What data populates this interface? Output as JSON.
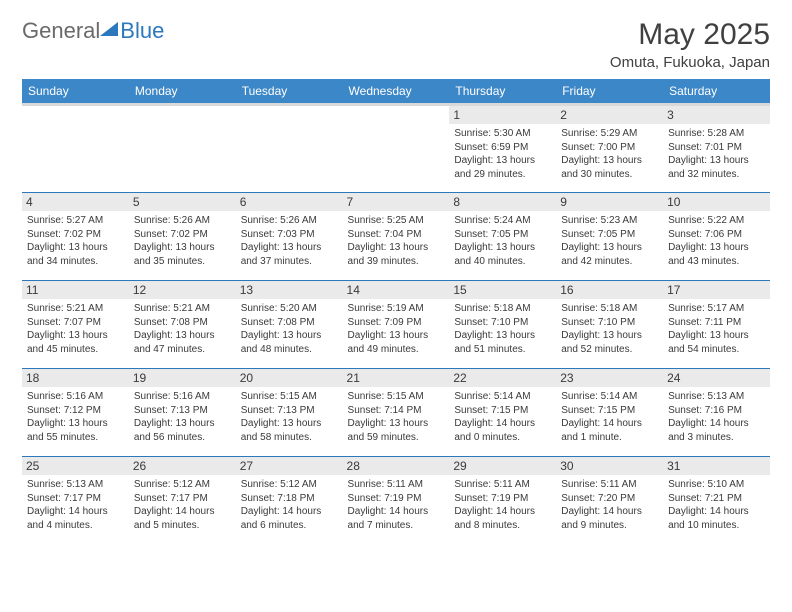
{
  "brand": {
    "part1": "General",
    "part2": "Blue"
  },
  "title": "May 2025",
  "location": "Omuta, Fukuoka, Japan",
  "colors": {
    "header_bg": "#3c87c7",
    "header_text": "#ffffff",
    "border": "#2b78bd",
    "daybar": "#eaeaea",
    "text": "#3a3a3a",
    "logo_gray": "#6a6a6a",
    "logo_blue": "#2b78bd"
  },
  "typography": {
    "title_fontsize": 30,
    "location_fontsize": 15,
    "header_fontsize": 12,
    "daynum_fontsize": 12,
    "info_fontsize": 10
  },
  "day_headers": [
    "Sunday",
    "Monday",
    "Tuesday",
    "Wednesday",
    "Thursday",
    "Friday",
    "Saturday"
  ],
  "weeks": [
    [
      null,
      null,
      null,
      null,
      {
        "n": "1",
        "sr": "Sunrise: 5:30 AM",
        "ss": "Sunset: 6:59 PM",
        "dl": "Daylight: 13 hours and 29 minutes."
      },
      {
        "n": "2",
        "sr": "Sunrise: 5:29 AM",
        "ss": "Sunset: 7:00 PM",
        "dl": "Daylight: 13 hours and 30 minutes."
      },
      {
        "n": "3",
        "sr": "Sunrise: 5:28 AM",
        "ss": "Sunset: 7:01 PM",
        "dl": "Daylight: 13 hours and 32 minutes."
      }
    ],
    [
      {
        "n": "4",
        "sr": "Sunrise: 5:27 AM",
        "ss": "Sunset: 7:02 PM",
        "dl": "Daylight: 13 hours and 34 minutes."
      },
      {
        "n": "5",
        "sr": "Sunrise: 5:26 AM",
        "ss": "Sunset: 7:02 PM",
        "dl": "Daylight: 13 hours and 35 minutes."
      },
      {
        "n": "6",
        "sr": "Sunrise: 5:26 AM",
        "ss": "Sunset: 7:03 PM",
        "dl": "Daylight: 13 hours and 37 minutes."
      },
      {
        "n": "7",
        "sr": "Sunrise: 5:25 AM",
        "ss": "Sunset: 7:04 PM",
        "dl": "Daylight: 13 hours and 39 minutes."
      },
      {
        "n": "8",
        "sr": "Sunrise: 5:24 AM",
        "ss": "Sunset: 7:05 PM",
        "dl": "Daylight: 13 hours and 40 minutes."
      },
      {
        "n": "9",
        "sr": "Sunrise: 5:23 AM",
        "ss": "Sunset: 7:05 PM",
        "dl": "Daylight: 13 hours and 42 minutes."
      },
      {
        "n": "10",
        "sr": "Sunrise: 5:22 AM",
        "ss": "Sunset: 7:06 PM",
        "dl": "Daylight: 13 hours and 43 minutes."
      }
    ],
    [
      {
        "n": "11",
        "sr": "Sunrise: 5:21 AM",
        "ss": "Sunset: 7:07 PM",
        "dl": "Daylight: 13 hours and 45 minutes."
      },
      {
        "n": "12",
        "sr": "Sunrise: 5:21 AM",
        "ss": "Sunset: 7:08 PM",
        "dl": "Daylight: 13 hours and 47 minutes."
      },
      {
        "n": "13",
        "sr": "Sunrise: 5:20 AM",
        "ss": "Sunset: 7:08 PM",
        "dl": "Daylight: 13 hours and 48 minutes."
      },
      {
        "n": "14",
        "sr": "Sunrise: 5:19 AM",
        "ss": "Sunset: 7:09 PM",
        "dl": "Daylight: 13 hours and 49 minutes."
      },
      {
        "n": "15",
        "sr": "Sunrise: 5:18 AM",
        "ss": "Sunset: 7:10 PM",
        "dl": "Daylight: 13 hours and 51 minutes."
      },
      {
        "n": "16",
        "sr": "Sunrise: 5:18 AM",
        "ss": "Sunset: 7:10 PM",
        "dl": "Daylight: 13 hours and 52 minutes."
      },
      {
        "n": "17",
        "sr": "Sunrise: 5:17 AM",
        "ss": "Sunset: 7:11 PM",
        "dl": "Daylight: 13 hours and 54 minutes."
      }
    ],
    [
      {
        "n": "18",
        "sr": "Sunrise: 5:16 AM",
        "ss": "Sunset: 7:12 PM",
        "dl": "Daylight: 13 hours and 55 minutes."
      },
      {
        "n": "19",
        "sr": "Sunrise: 5:16 AM",
        "ss": "Sunset: 7:13 PM",
        "dl": "Daylight: 13 hours and 56 minutes."
      },
      {
        "n": "20",
        "sr": "Sunrise: 5:15 AM",
        "ss": "Sunset: 7:13 PM",
        "dl": "Daylight: 13 hours and 58 minutes."
      },
      {
        "n": "21",
        "sr": "Sunrise: 5:15 AM",
        "ss": "Sunset: 7:14 PM",
        "dl": "Daylight: 13 hours and 59 minutes."
      },
      {
        "n": "22",
        "sr": "Sunrise: 5:14 AM",
        "ss": "Sunset: 7:15 PM",
        "dl": "Daylight: 14 hours and 0 minutes."
      },
      {
        "n": "23",
        "sr": "Sunrise: 5:14 AM",
        "ss": "Sunset: 7:15 PM",
        "dl": "Daylight: 14 hours and 1 minute."
      },
      {
        "n": "24",
        "sr": "Sunrise: 5:13 AM",
        "ss": "Sunset: 7:16 PM",
        "dl": "Daylight: 14 hours and 3 minutes."
      }
    ],
    [
      {
        "n": "25",
        "sr": "Sunrise: 5:13 AM",
        "ss": "Sunset: 7:17 PM",
        "dl": "Daylight: 14 hours and 4 minutes."
      },
      {
        "n": "26",
        "sr": "Sunrise: 5:12 AM",
        "ss": "Sunset: 7:17 PM",
        "dl": "Daylight: 14 hours and 5 minutes."
      },
      {
        "n": "27",
        "sr": "Sunrise: 5:12 AM",
        "ss": "Sunset: 7:18 PM",
        "dl": "Daylight: 14 hours and 6 minutes."
      },
      {
        "n": "28",
        "sr": "Sunrise: 5:11 AM",
        "ss": "Sunset: 7:19 PM",
        "dl": "Daylight: 14 hours and 7 minutes."
      },
      {
        "n": "29",
        "sr": "Sunrise: 5:11 AM",
        "ss": "Sunset: 7:19 PM",
        "dl": "Daylight: 14 hours and 8 minutes."
      },
      {
        "n": "30",
        "sr": "Sunrise: 5:11 AM",
        "ss": "Sunset: 7:20 PM",
        "dl": "Daylight: 14 hours and 9 minutes."
      },
      {
        "n": "31",
        "sr": "Sunrise: 5:10 AM",
        "ss": "Sunset: 7:21 PM",
        "dl": "Daylight: 14 hours and 10 minutes."
      }
    ]
  ]
}
